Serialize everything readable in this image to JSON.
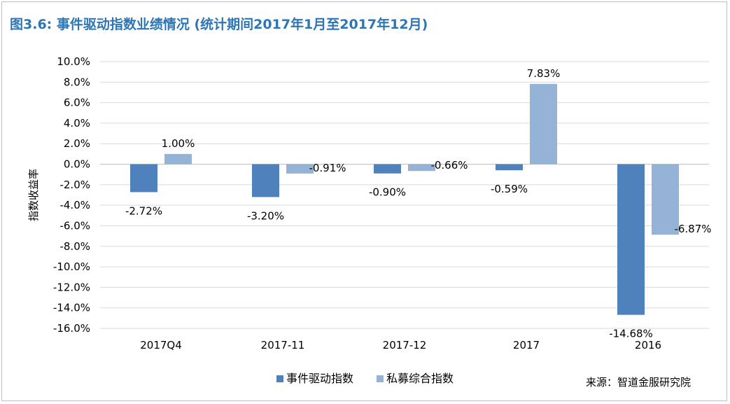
{
  "title": "图3.6: 事件驱动指数业绩情况 (统计期间2017年1月至2017年12月)",
  "source": "来源：智道金服研究院",
  "chart_data": {
    "type": "bar",
    "categories": [
      "2017Q4",
      "2017-11",
      "2017-12",
      "2017",
      "2016"
    ],
    "series": [
      {
        "name": "事件驱动指数",
        "values": [
          -2.72,
          -3.2,
          -0.9,
          -0.59,
          -14.68
        ],
        "labels": [
          "-2.72%",
          "-3.20%",
          "-0.90%",
          "-0.59%",
          "-14.68%"
        ],
        "color": "#4f81bd"
      },
      {
        "name": "私募综合指数",
        "values": [
          1.0,
          -0.91,
          -0.66,
          7.83,
          -6.87
        ],
        "labels": [
          "1.00%",
          "-0.91%",
          "-0.66%",
          "7.83%",
          "-6.87%"
        ],
        "color": "#95b3d7"
      }
    ],
    "ylabel": "指数收益率",
    "ylim": [
      -16,
      10
    ],
    "yticks": [
      "10.0%",
      "8.0%",
      "6.0%",
      "4.0%",
      "2.0%",
      "0.0%",
      "-2.0%",
      "-4.0%",
      "-6.0%",
      "-8.0%",
      "-10.0%",
      "-12.0%",
      "-14.0%",
      "-16.0%"
    ],
    "ytick_values": [
      10,
      8,
      6,
      4,
      2,
      0,
      -2,
      -4,
      -6,
      -8,
      -10,
      -12,
      -14,
      -16
    ],
    "grid": true,
    "legend": "bottom"
  }
}
